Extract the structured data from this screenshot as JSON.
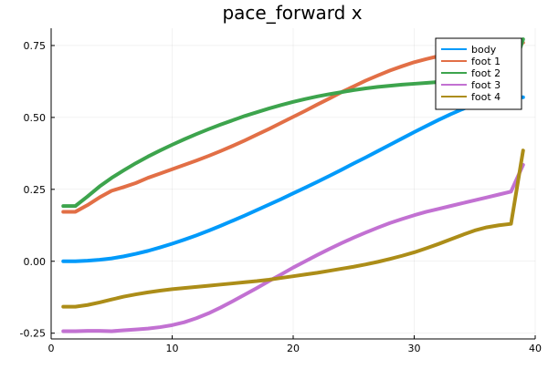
{
  "chart_data": {
    "type": "line",
    "title": "pace_forward x",
    "xlabel": "",
    "ylabel": "",
    "xlim": [
      0,
      40
    ],
    "ylim": [
      -0.27,
      0.81
    ],
    "grid": true,
    "legend_position": "top-right",
    "x_ticks": [
      0,
      10,
      20,
      30,
      40
    ],
    "x_tick_labels": [
      "0",
      "10",
      "20",
      "30",
      "40"
    ],
    "y_ticks": [
      -0.25,
      0.0,
      0.25,
      0.5,
      0.75
    ],
    "y_tick_labels": [
      "-0.25",
      "0.00",
      "0.25",
      "0.50",
      "0.75"
    ],
    "x": [
      1,
      2,
      3,
      4,
      5,
      6,
      7,
      8,
      9,
      10,
      11,
      12,
      13,
      14,
      15,
      16,
      17,
      18,
      19,
      20,
      21,
      22,
      23,
      24,
      25,
      26,
      27,
      28,
      29,
      30,
      31,
      32,
      33,
      34,
      35,
      36,
      37,
      38,
      39
    ],
    "series": [
      {
        "name": "body",
        "color": "#009AFA",
        "values": [
          0.0,
          0.0,
          0.002,
          0.005,
          0.01,
          0.017,
          0.026,
          0.036,
          0.048,
          0.061,
          0.075,
          0.09,
          0.106,
          0.123,
          0.141,
          0.159,
          0.178,
          0.197,
          0.216,
          0.236,
          0.256,
          0.276,
          0.297,
          0.318,
          0.34,
          0.361,
          0.383,
          0.405,
          0.427,
          0.449,
          0.47,
          0.491,
          0.511,
          0.529,
          0.545,
          0.558,
          0.567,
          0.57,
          0.57
        ]
      },
      {
        "name": "foot 1",
        "color": "#E26F46",
        "values": [
          0.172,
          0.172,
          0.195,
          0.222,
          0.245,
          0.258,
          0.272,
          0.29,
          0.305,
          0.32,
          0.335,
          0.35,
          0.366,
          0.383,
          0.401,
          0.42,
          0.44,
          0.46,
          0.481,
          0.502,
          0.523,
          0.545,
          0.566,
          0.588,
          0.608,
          0.628,
          0.646,
          0.663,
          0.678,
          0.692,
          0.703,
          0.713,
          0.72,
          0.726,
          0.731,
          0.735,
          0.739,
          0.742,
          0.76
        ]
      },
      {
        "name": "foot 2",
        "color": "#3DA44D",
        "values": [
          0.192,
          0.192,
          0.225,
          0.26,
          0.29,
          0.316,
          0.341,
          0.364,
          0.385,
          0.405,
          0.424,
          0.442,
          0.459,
          0.475,
          0.49,
          0.505,
          0.518,
          0.531,
          0.543,
          0.554,
          0.564,
          0.573,
          0.581,
          0.588,
          0.595,
          0.601,
          0.606,
          0.61,
          0.614,
          0.617,
          0.62,
          0.623,
          0.626,
          0.629,
          0.632,
          0.635,
          0.638,
          0.64,
          0.772
        ]
      },
      {
        "name": "foot 3",
        "color": "#C271D2",
        "values": [
          -0.243,
          -0.243,
          -0.242,
          -0.242,
          -0.243,
          -0.24,
          -0.237,
          -0.234,
          -0.229,
          -0.222,
          -0.212,
          -0.198,
          -0.181,
          -0.161,
          -0.139,
          -0.116,
          -0.093,
          -0.069,
          -0.046,
          -0.022,
          0.0,
          0.022,
          0.043,
          0.063,
          0.082,
          0.1,
          0.117,
          0.133,
          0.147,
          0.16,
          0.172,
          0.182,
          0.192,
          0.202,
          0.212,
          0.222,
          0.232,
          0.242,
          0.335
        ]
      },
      {
        "name": "foot 4",
        "color": "#AC8D18",
        "values": [
          -0.158,
          -0.158,
          -0.152,
          -0.143,
          -0.133,
          -0.123,
          -0.115,
          -0.108,
          -0.102,
          -0.097,
          -0.093,
          -0.089,
          -0.085,
          -0.081,
          -0.077,
          -0.073,
          -0.069,
          -0.064,
          -0.058,
          -0.052,
          -0.046,
          -0.04,
          -0.033,
          -0.026,
          -0.019,
          -0.011,
          -0.002,
          0.008,
          0.019,
          0.031,
          0.045,
          0.06,
          0.076,
          0.092,
          0.107,
          0.118,
          0.125,
          0.13,
          0.385
        ]
      }
    ]
  }
}
